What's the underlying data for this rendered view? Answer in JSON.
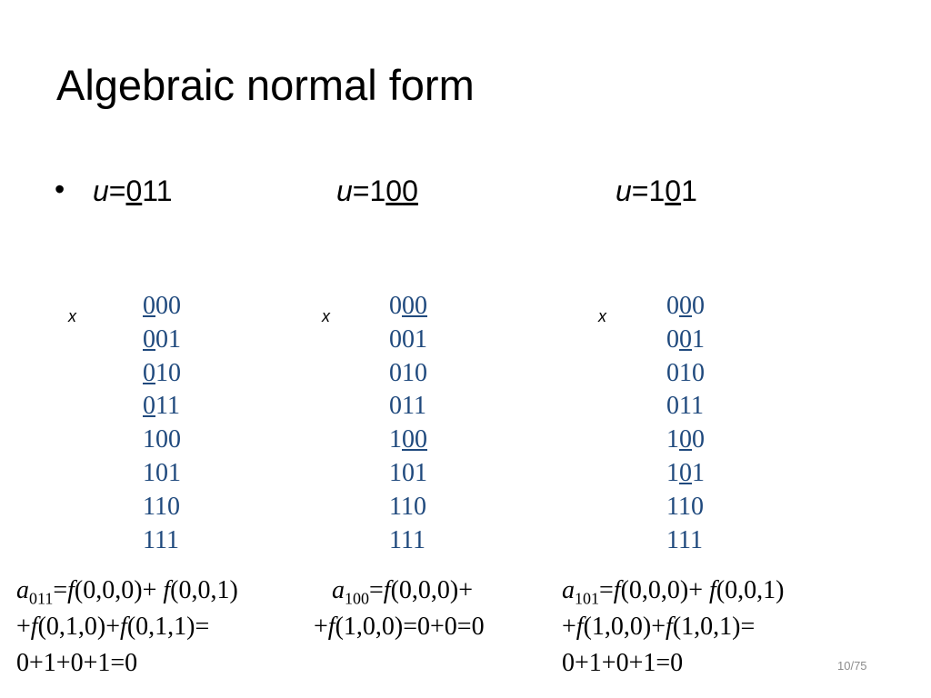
{
  "title": "Algebraic normal form",
  "columns": [
    {
      "u": "u=011",
      "x": "x",
      "rows": [
        "000",
        "001",
        "010",
        "011",
        "100",
        "101",
        "110",
        "111"
      ],
      "formula": [
        "a011=f(0,0,0)+ f(0,0,1)",
        "+f(0,1,0)+f(0,1,1)=",
        "0+1+0+1=0"
      ]
    },
    {
      "u": "u=100",
      "x": "x",
      "rows": [
        "000",
        "001",
        "010",
        "011",
        "100",
        "101",
        "110",
        "111"
      ],
      "formula": [
        "a100=f(0,0,0)+",
        "+f(1,0,0)=0+0=0"
      ]
    },
    {
      "u": "u=101",
      "x": "x",
      "rows": [
        "000",
        "001",
        "010",
        "011",
        "100",
        "101",
        "110",
        "111"
      ],
      "formula": [
        "a101=f(0,0,0)+ f(0,0,1)",
        "+f(1,0,0)+f(1,0,1)=",
        "0+1+0+1=0"
      ]
    }
  ],
  "page": "10/75"
}
